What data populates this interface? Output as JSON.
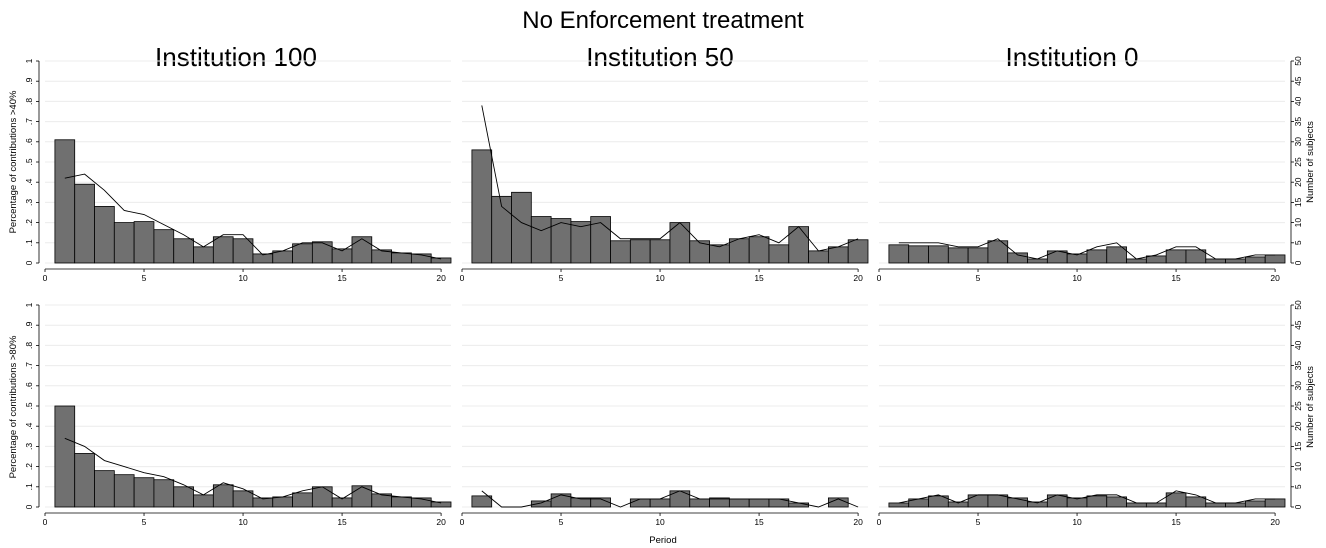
{
  "figure_title": "No Enforcement treatment",
  "column_titles": [
    "Institution 100",
    "Institution 50",
    "Institution 0"
  ],
  "row_ylabels": [
    "Percentage of contributions >40%",
    "Percentage of contributions >80%"
  ],
  "right_ylabel": "Number of subjects",
  "xlabel": "Period",
  "left_ticks": [
    "0",
    ".1",
    ".2",
    ".3",
    ".4",
    ".5",
    ".6",
    ".7",
    ".8",
    ".9",
    "1"
  ],
  "right_ticks": [
    "0",
    "5",
    "10",
    "15",
    "20",
    "25",
    "30",
    "35",
    "40",
    "45",
    "50"
  ],
  "x_ticks": [
    "0",
    "5",
    "10",
    "15",
    "20"
  ],
  "colors": {
    "bar_fill": "#707070",
    "bar_stroke": "#000000",
    "line": "#000000",
    "grid": "#ececec"
  },
  "chart_data": [
    {
      "type": "bar",
      "panel": "Institution 100 / >40%",
      "xlim": [
        0,
        20.5
      ],
      "ylim": [
        0,
        1
      ],
      "x": [
        1,
        2,
        3,
        4,
        5,
        6,
        7,
        8,
        9,
        10,
        11,
        12,
        13,
        14,
        15,
        16,
        17,
        18,
        19,
        20
      ],
      "bars": [
        0.61,
        0.39,
        0.28,
        0.2,
        0.205,
        0.165,
        0.12,
        0.08,
        0.13,
        0.12,
        0.045,
        0.06,
        0.095,
        0.105,
        0.07,
        0.13,
        0.065,
        0.05,
        0.045,
        0.025
      ],
      "line": [
        0.42,
        0.44,
        0.36,
        0.26,
        0.24,
        0.19,
        0.14,
        0.08,
        0.14,
        0.14,
        0.04,
        0.06,
        0.1,
        0.1,
        0.06,
        0.12,
        0.06,
        0.05,
        0.04,
        0.02
      ]
    },
    {
      "type": "bar",
      "panel": "Institution 50 / >40%",
      "xlim": [
        0,
        20.5
      ],
      "ylim": [
        0,
        1
      ],
      "x": [
        1,
        2,
        3,
        4,
        5,
        6,
        7,
        8,
        9,
        10,
        11,
        12,
        13,
        14,
        15,
        16,
        17,
        18,
        19,
        20
      ],
      "bars": [
        0.56,
        0.33,
        0.35,
        0.23,
        0.22,
        0.205,
        0.23,
        0.11,
        0.115,
        0.115,
        0.2,
        0.11,
        0.09,
        0.12,
        0.13,
        0.09,
        0.18,
        0.06,
        0.08,
        0.115
      ],
      "line": [
        0.78,
        0.28,
        0.2,
        0.16,
        0.2,
        0.18,
        0.2,
        0.12,
        0.12,
        0.12,
        0.2,
        0.1,
        0.08,
        0.12,
        0.14,
        0.1,
        0.18,
        0.06,
        0.08,
        0.12
      ]
    },
    {
      "type": "bar",
      "panel": "Institution 0 / >40%",
      "xlim": [
        0,
        20.5
      ],
      "ylim": [
        0,
        1
      ],
      "x": [
        1,
        2,
        3,
        4,
        5,
        6,
        7,
        8,
        9,
        10,
        11,
        12,
        13,
        14,
        15,
        16,
        17,
        18,
        19,
        20
      ],
      "bars": [
        0.09,
        0.085,
        0.085,
        0.075,
        0.075,
        0.11,
        0.05,
        0.02,
        0.06,
        0.045,
        0.065,
        0.08,
        0.02,
        0.035,
        0.065,
        0.065,
        0.02,
        0.02,
        0.03,
        0.04
      ],
      "line": [
        0.1,
        0.1,
        0.1,
        0.08,
        0.08,
        0.12,
        0.04,
        0.02,
        0.06,
        0.04,
        0.08,
        0.1,
        0.02,
        0.04,
        0.08,
        0.08,
        0.02,
        0.02,
        0.04,
        0.04
      ]
    },
    {
      "type": "bar",
      "panel": "Institution 100 / >80%",
      "xlim": [
        0,
        20.5
      ],
      "ylim": [
        0,
        1
      ],
      "x": [
        1,
        2,
        3,
        4,
        5,
        6,
        7,
        8,
        9,
        10,
        11,
        12,
        13,
        14,
        15,
        16,
        17,
        18,
        19,
        20
      ],
      "bars": [
        0.5,
        0.265,
        0.18,
        0.16,
        0.145,
        0.135,
        0.1,
        0.06,
        0.11,
        0.08,
        0.045,
        0.05,
        0.07,
        0.1,
        0.045,
        0.105,
        0.065,
        0.05,
        0.045,
        0.025
      ],
      "line": [
        0.34,
        0.3,
        0.23,
        0.2,
        0.17,
        0.15,
        0.11,
        0.06,
        0.12,
        0.09,
        0.04,
        0.05,
        0.08,
        0.1,
        0.04,
        0.1,
        0.06,
        0.05,
        0.04,
        0.02
      ]
    },
    {
      "type": "bar",
      "panel": "Institution 50 / >80%",
      "xlim": [
        0,
        20.5
      ],
      "ylim": [
        0,
        1
      ],
      "x": [
        1,
        2,
        3,
        4,
        5,
        6,
        7,
        8,
        9,
        10,
        11,
        12,
        13,
        14,
        15,
        16,
        17,
        18,
        19,
        20
      ],
      "bars": [
        0.055,
        0,
        0,
        0.03,
        0.065,
        0.045,
        0.045,
        0,
        0.04,
        0.04,
        0.08,
        0.04,
        0.045,
        0.04,
        0.04,
        0.04,
        0.02,
        0,
        0.045,
        0
      ],
      "line": [
        0.08,
        0,
        0,
        0.02,
        0.06,
        0.04,
        0.04,
        0,
        0.04,
        0.04,
        0.08,
        0.04,
        0.04,
        0.04,
        0.04,
        0.04,
        0.02,
        0,
        0.04,
        0
      ]
    },
    {
      "type": "bar",
      "panel": "Institution 0 / >80%",
      "xlim": [
        0,
        20.5
      ],
      "ylim": [
        0,
        1
      ],
      "x": [
        1,
        2,
        3,
        4,
        5,
        6,
        7,
        8,
        9,
        10,
        11,
        12,
        13,
        14,
        15,
        16,
        17,
        18,
        19,
        20
      ],
      "bars": [
        0.02,
        0.04,
        0.055,
        0.025,
        0.06,
        0.06,
        0.045,
        0.025,
        0.06,
        0.045,
        0.055,
        0.05,
        0.02,
        0.02,
        0.07,
        0.05,
        0.02,
        0.02,
        0.03,
        0.04
      ],
      "line": [
        0.02,
        0.04,
        0.06,
        0.02,
        0.06,
        0.06,
        0.04,
        0.02,
        0.06,
        0.04,
        0.06,
        0.06,
        0.02,
        0.02,
        0.08,
        0.06,
        0.02,
        0.02,
        0.04,
        0.04
      ]
    }
  ]
}
